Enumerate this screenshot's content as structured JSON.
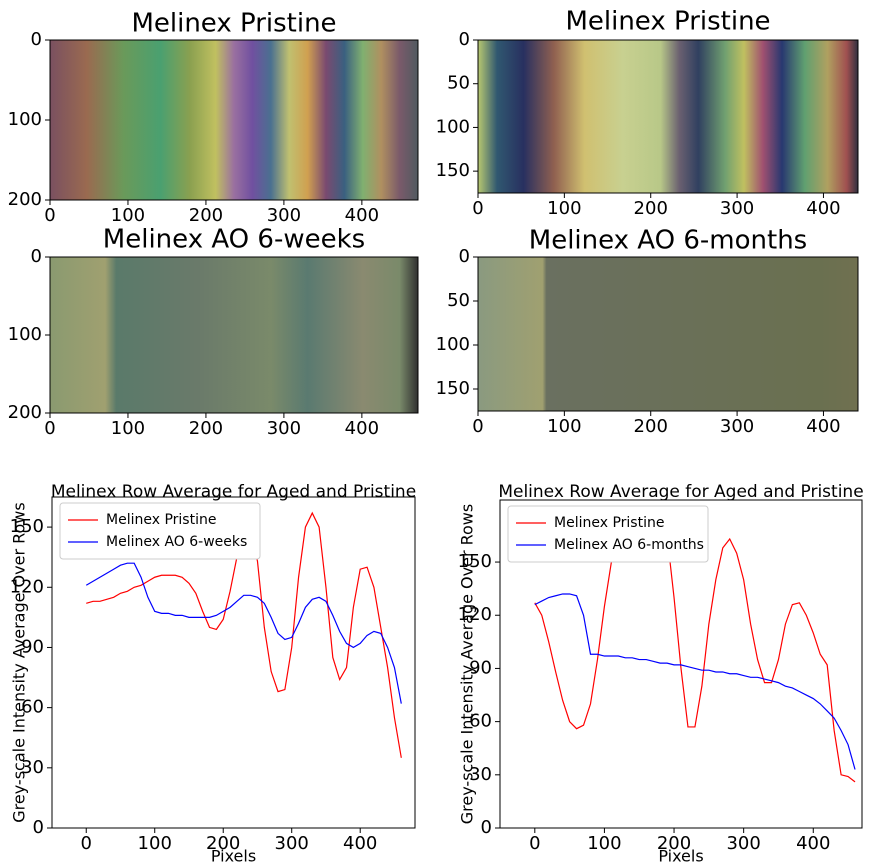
{
  "chart_data": [
    {
      "type": "image",
      "title": "Melinex Pristine",
      "xlim": [
        0,
        472
      ],
      "ylim": [
        200,
        0
      ],
      "xticks": [
        0,
        100,
        200,
        300,
        400
      ],
      "yticks": [
        0,
        100,
        200
      ]
    },
    {
      "type": "image",
      "title": "Melinex Pristine",
      "xlim": [
        0,
        440
      ],
      "ylim": [
        175,
        0
      ],
      "xticks": [
        0,
        100,
        200,
        300,
        400
      ],
      "yticks": [
        0,
        50,
        100,
        150
      ]
    },
    {
      "type": "image",
      "title": "Melinex AO 6-weeks",
      "xlim": [
        0,
        472
      ],
      "ylim": [
        200,
        0
      ],
      "xticks": [
        0,
        100,
        200,
        300,
        400
      ],
      "yticks": [
        0,
        100,
        200
      ]
    },
    {
      "type": "image",
      "title": "Melinex AO 6-months",
      "xlim": [
        0,
        440
      ],
      "ylim": [
        175,
        0
      ],
      "xticks": [
        0,
        100,
        200,
        300,
        400
      ],
      "yticks": [
        0,
        50,
        100,
        150
      ]
    },
    {
      "type": "line",
      "title": "Melinex Row Average for Aged and Pristine",
      "x_label": "Pixels",
      "y_label": "Grey-scale Intensity Average Over Rows",
      "x": [
        0,
        10,
        20,
        30,
        40,
        50,
        60,
        70,
        80,
        90,
        100,
        110,
        120,
        130,
        140,
        150,
        160,
        170,
        180,
        190,
        200,
        210,
        220,
        230,
        240,
        250,
        260,
        270,
        280,
        290,
        300,
        310,
        320,
        330,
        340,
        350,
        360,
        370,
        380,
        390,
        400,
        410,
        420,
        430,
        440,
        450,
        460
      ],
      "series": [
        {
          "name": "Melinex Pristine",
          "color": "#ff0000",
          "values": [
            112,
            113,
            113,
            114,
            115,
            117,
            118,
            120,
            121,
            123,
            125,
            126,
            126,
            126,
            125,
            122,
            117,
            108,
            100,
            99,
            104,
            118,
            135,
            147,
            148,
            133,
            100,
            78,
            68,
            69,
            90,
            125,
            150,
            157,
            150,
            120,
            85,
            74,
            80,
            110,
            129,
            130,
            120,
            100,
            80,
            55,
            35
          ]
        },
        {
          "name": "Melinex AO 6-weeks",
          "color": "#0000ff",
          "values": [
            121,
            123,
            125,
            127,
            129,
            131,
            132,
            132,
            125,
            115,
            108,
            107,
            107,
            106,
            106,
            105,
            105,
            105,
            105,
            106,
            108,
            110,
            113,
            116,
            116,
            115,
            112,
            105,
            97,
            94,
            95,
            102,
            110,
            114,
            115,
            113,
            106,
            98,
            92,
            90,
            92,
            96,
            98,
            97,
            90,
            80,
            62
          ]
        }
      ],
      "xlim": [
        -50,
        480
      ],
      "ylim": [
        0,
        165
      ],
      "xticks": [
        0,
        100,
        200,
        300,
        400
      ],
      "yticks": [
        0,
        30,
        60,
        90,
        120,
        150
      ],
      "legend": "upper left"
    },
    {
      "type": "line",
      "title": "Melinex Row Average for Aged and Pristine",
      "x_label": "Pixels",
      "y_label": "Grey-scale Intensity Average Over Rows",
      "x": [
        0,
        10,
        20,
        30,
        40,
        50,
        60,
        70,
        80,
        90,
        100,
        110,
        120,
        130,
        140,
        150,
        160,
        170,
        180,
        190,
        200,
        210,
        220,
        230,
        240,
        250,
        260,
        270,
        280,
        290,
        300,
        310,
        320,
        330,
        340,
        350,
        360,
        370,
        380,
        390,
        400,
        410,
        420,
        430,
        440,
        450,
        460
      ],
      "series": [
        {
          "name": "Melinex Pristine",
          "color": "#ff0000",
          "values": [
            127,
            120,
            105,
            88,
            72,
            60,
            56,
            58,
            70,
            95,
            125,
            150,
            168,
            175,
            178,
            178,
            170,
            175,
            178,
            165,
            130,
            90,
            57,
            57,
            80,
            115,
            140,
            158,
            163,
            155,
            140,
            115,
            95,
            82,
            82,
            95,
            115,
            126,
            127,
            120,
            110,
            98,
            92,
            55,
            30,
            29,
            26
          ]
        },
        {
          "name": "Melinex AO 6-months",
          "color": "#0000ff",
          "values": [
            126,
            128,
            130,
            131,
            132,
            132,
            131,
            120,
            98,
            98,
            97,
            97,
            97,
            96,
            96,
            95,
            95,
            94,
            93,
            93,
            92,
            92,
            91,
            90,
            89,
            89,
            88,
            88,
            87,
            87,
            86,
            85,
            85,
            84,
            83,
            82,
            80,
            79,
            77,
            75,
            73,
            70,
            66,
            62,
            55,
            47,
            33
          ]
        }
      ],
      "xlim": [
        -50,
        470
      ],
      "ylim": [
        0,
        185
      ],
      "xticks": [
        0,
        100,
        200,
        300,
        400
      ],
      "yticks": [
        0,
        30,
        60,
        90,
        120,
        150
      ],
      "legend": "upper left"
    }
  ]
}
